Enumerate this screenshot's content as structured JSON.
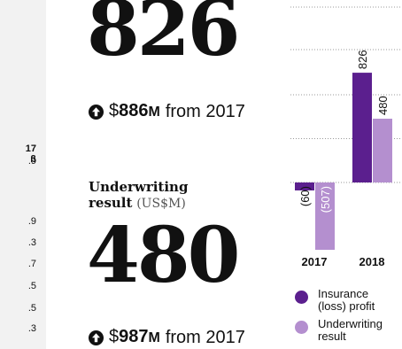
{
  "left_column": {
    "header": "17",
    "header2": "ß",
    "values": [
      ".9",
      ".9",
      ".3",
      ".7",
      ".5",
      ".5",
      ".3"
    ]
  },
  "insurance_profit": {
    "value": "826",
    "change_symbol": "$",
    "change_amount": "886",
    "change_unit": "M",
    "change_text": "from 2017"
  },
  "underwriting": {
    "title_bold_line1": "Underwriting",
    "title_bold_line2": "result",
    "title_unit": "(US$M)",
    "value": "480",
    "change_symbol": "$",
    "change_amount": "987",
    "change_unit": "M",
    "change_text": "from 2017"
  },
  "chart_data": {
    "type": "bar",
    "categories": [
      "2017",
      "2018"
    ],
    "series": [
      {
        "name": "Insurance (loss) profit",
        "values": [
          -60,
          826
        ],
        "labels": [
          "(60)",
          "826"
        ],
        "color": "#5b1f8e"
      },
      {
        "name": "Underwriting result",
        "values": [
          -507,
          480
        ],
        "labels": [
          "(507)",
          "480"
        ],
        "color": "#b48fcf"
      }
    ],
    "ylim": [
      -900,
      1530
    ],
    "grid": true,
    "legend_placement": "bottom"
  },
  "legend": {
    "item1_line1": "Insurance",
    "item1_line2": "(loss) profit",
    "item2_line1": "Underwriting",
    "item2_line2": "result"
  },
  "colors": {
    "dark_purple": "#5b1f8e",
    "light_purple": "#b48fcf",
    "grid": "#999999"
  },
  "icons": {
    "change_icon": "up-arrow-circle-icon"
  }
}
